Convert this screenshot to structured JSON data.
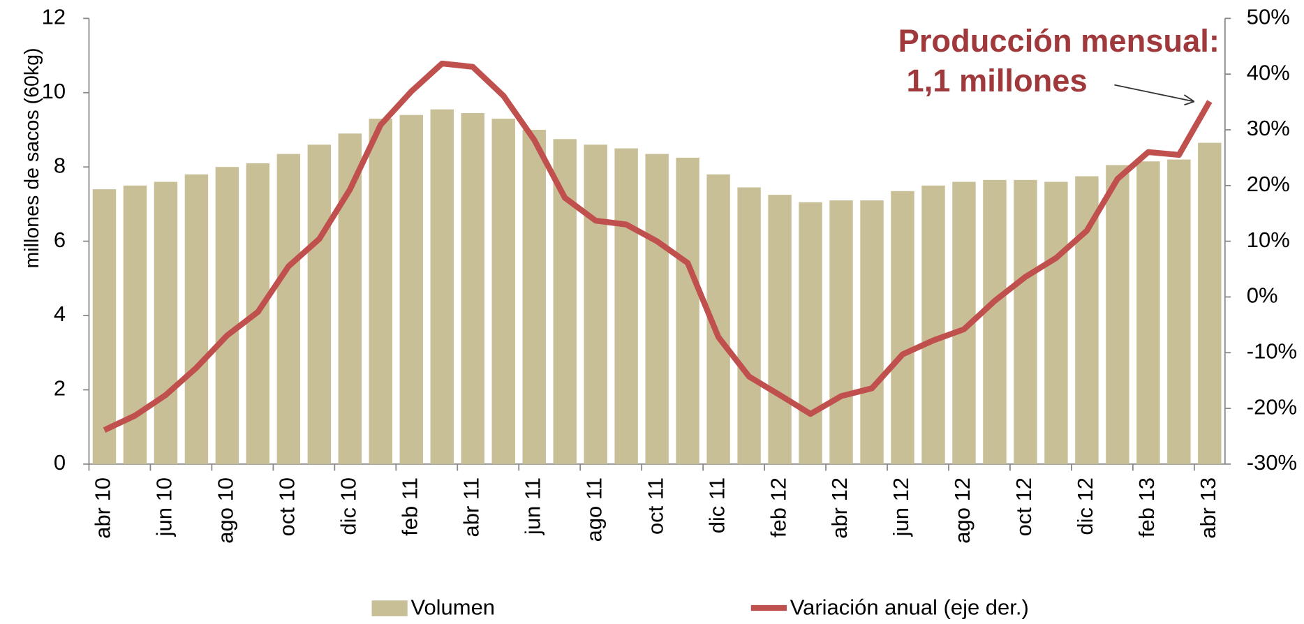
{
  "chart_data": {
    "type": "bar_line",
    "y_label": "millones de sacos (60kg)",
    "annotation": [
      "Producción mensual:",
      "1,1 millones"
    ],
    "categories": [
      "abr 10",
      null,
      "jun 10",
      null,
      "ago 10",
      null,
      "oct 10",
      null,
      "dic 10",
      null,
      "feb 11",
      null,
      "abr 11",
      null,
      "jun 11",
      null,
      "ago 11",
      null,
      "oct 11",
      null,
      "dic 11",
      null,
      "feb 12",
      null,
      "abr 12",
      null,
      "jun 12",
      null,
      "ago 12",
      null,
      "oct 12",
      null,
      "dic 12",
      null,
      "feb 13",
      null,
      "abr 13"
    ],
    "series": [
      {
        "name": "Volumen",
        "type": "bar",
        "color": "#c9bf97",
        "values": [
          7.4,
          7.5,
          7.6,
          7.8,
          8.0,
          8.1,
          8.35,
          8.6,
          8.9,
          9.3,
          9.4,
          9.55,
          9.45,
          9.3,
          9.0,
          8.75,
          8.6,
          8.5,
          8.35,
          8.25,
          7.8,
          7.45,
          7.25,
          7.05,
          7.1,
          7.1,
          7.35,
          7.5,
          7.6,
          7.65,
          7.65,
          7.6,
          7.75,
          8.05,
          8.15,
          8.2,
          8.65
        ]
      },
      {
        "name": "Variación anual (eje der.)",
        "type": "line",
        "axis": "y2",
        "color": "#c0504d",
        "values": [
          -23.9,
          -21.3,
          -17.6,
          -12.7,
          -6.9,
          -2.7,
          5.5,
          10.4,
          19.3,
          30.9,
          36.9,
          41.9,
          41.3,
          36.1,
          28.2,
          17.8,
          13.7,
          13.0,
          10.0,
          6.1,
          -7.2,
          -14.3,
          -17.6,
          -21.0,
          -17.8,
          -16.4,
          -10.3,
          -7.8,
          -5.8,
          -0.7,
          3.6,
          7.0,
          11.9,
          21.2,
          26.0,
          25.5,
          35.1
        ]
      }
    ],
    "ylim": [
      0,
      12
    ],
    "yticks": [
      0,
      2,
      4,
      6,
      8,
      10,
      12
    ],
    "y2lim": [
      -30,
      50
    ],
    "y2ticks": [
      {
        "value": -30,
        "label": "-30%"
      },
      {
        "value": -20,
        "label": "-20%"
      },
      {
        "value": -10,
        "label": "-10%"
      },
      {
        "value": 0,
        "label": "0%"
      },
      {
        "value": 10,
        "label": "10%"
      },
      {
        "value": 20,
        "label": "20%"
      },
      {
        "value": 30,
        "label": "30%"
      },
      {
        "value": 40,
        "label": "40%"
      },
      {
        "value": 50,
        "label": "50%"
      }
    ],
    "annotation_color": "#a0393b"
  }
}
